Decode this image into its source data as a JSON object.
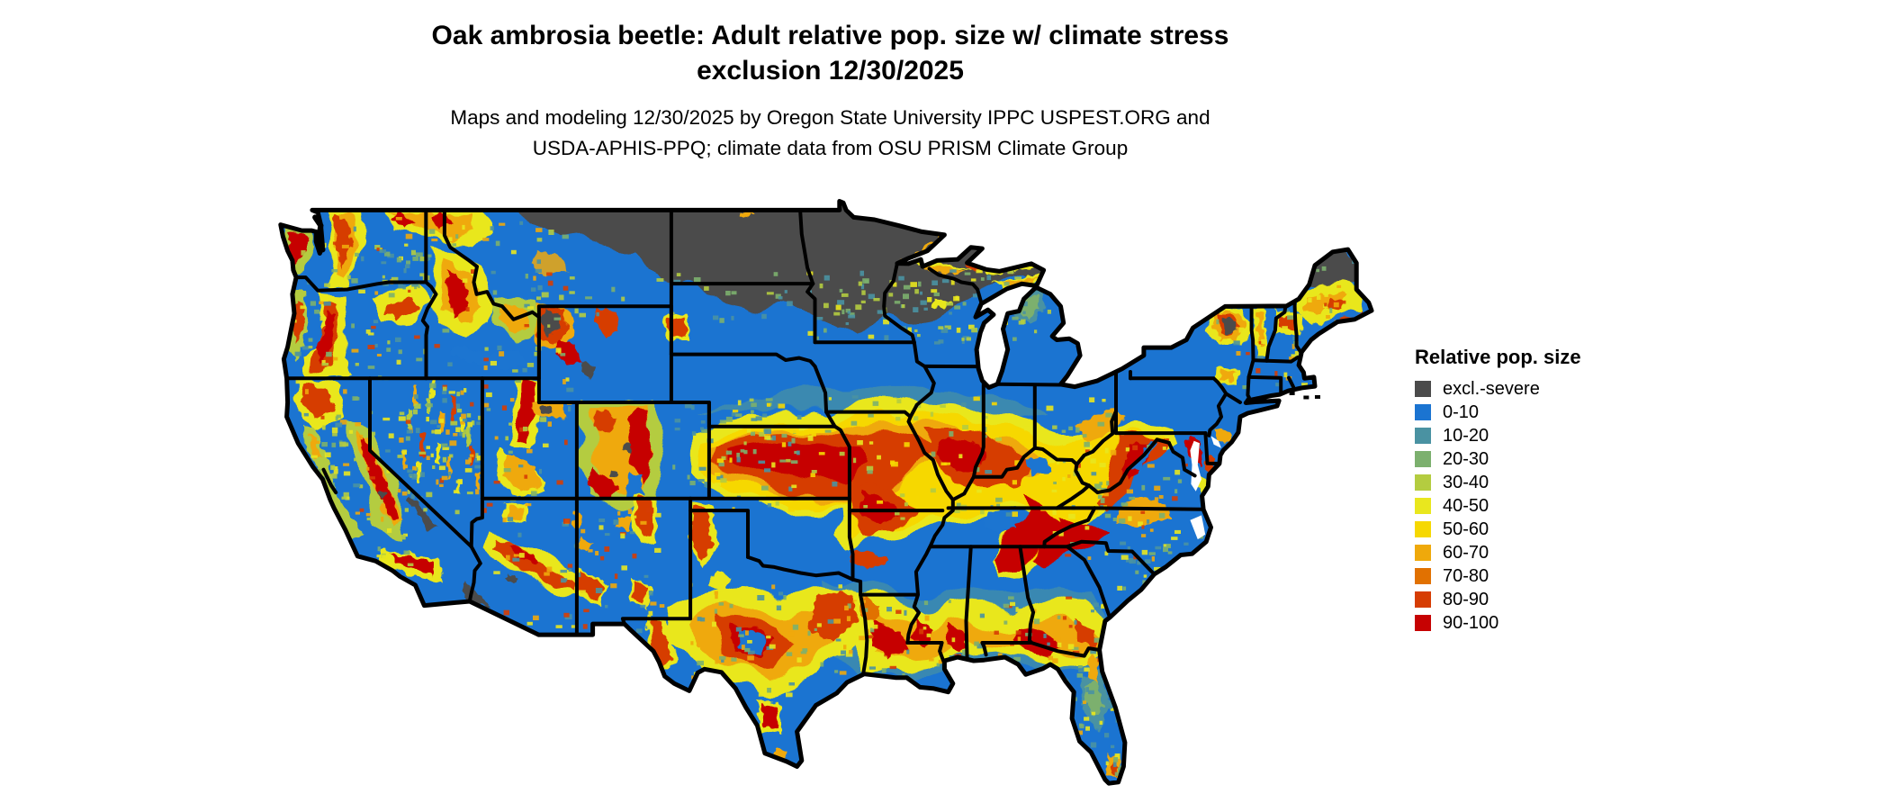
{
  "title": {
    "line1": "Oak ambrosia beetle: Adult relative pop. size w/ climate stress",
    "line2": "exclusion 12/30/2025"
  },
  "subtitle": {
    "line1": "Maps and modeling 12/30/2025 by Oregon State University IPPC USPEST.ORG and",
    "line2": "USDA-APHIS-PPQ; climate data from OSU PRISM Climate Group"
  },
  "legend": {
    "title": "Relative pop. size",
    "entries": [
      {
        "key": "k",
        "label": "excl.-severe",
        "color": "#4b4b4b"
      },
      {
        "key": "b",
        "label": "0-10",
        "color": "#1b74d1"
      },
      {
        "key": "t",
        "label": "10-20",
        "color": "#4a92a2"
      },
      {
        "key": "n",
        "label": "20-30",
        "color": "#7cb06e"
      },
      {
        "key": "v",
        "label": "30-40",
        "color": "#b4cc40"
      },
      {
        "key": "y",
        "label": "40-50",
        "color": "#e9e71e"
      },
      {
        "key": "g",
        "label": "50-60",
        "color": "#f6d801"
      },
      {
        "key": "o",
        "label": "60-70",
        "color": "#efa90b"
      },
      {
        "key": "d",
        "label": "70-80",
        "color": "#e17101"
      },
      {
        "key": "w",
        "label": "80-90",
        "color": "#d63d03"
      },
      {
        "key": "r",
        "label": "90-100",
        "color": "#c60202"
      }
    ]
  },
  "map": {
    "region": "Continental United States",
    "border_color": "#000000",
    "background_color": "#ffffff"
  }
}
